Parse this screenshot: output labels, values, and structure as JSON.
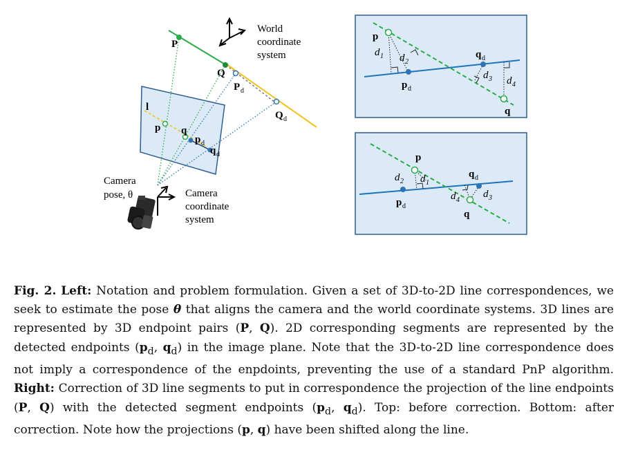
{
  "figure": {
    "left": {
      "world_frame_label": [
        "World",
        "coordinate",
        "system"
      ],
      "camera_frame_label": [
        "Camera",
        "coordinate",
        "system"
      ],
      "camera_pose_label": [
        "Camera",
        "pose, θ"
      ],
      "point_P": "P",
      "point_Q": "Q",
      "point_Pd": "P",
      "point_Pd_sub": "d",
      "point_Qd": "Q",
      "point_Qd_sub": "d",
      "line_l": "l",
      "image_p": "p",
      "image_q": "q",
      "image_pd": "p",
      "image_pd_sub": "d",
      "image_qd": "q",
      "image_qd_sub": "d"
    },
    "top_right": {
      "p": "p",
      "q": "q",
      "pd": "p",
      "pd_sub": "d",
      "qd": "q",
      "qd_sub": "d",
      "d1": "d",
      "d1_sub": "1",
      "d2": "d",
      "d2_sub": "2",
      "d3": "d",
      "d3_sub": "3",
      "d4": "d",
      "d4_sub": "4"
    },
    "bottom_right": {
      "p": "p",
      "q": "q",
      "pd": "p",
      "pd_sub": "d",
      "qd": "q",
      "qd_sub": "d",
      "d1": "d",
      "d1_sub": "1",
      "d2": "d",
      "d2_sub": "2",
      "d3": "d",
      "d3_sub": "3",
      "d4": "d",
      "d4_sub": "4"
    }
  },
  "caption": {
    "fig_label": "Fig. 2.",
    "left_label": "Left:",
    "text_1": " Notation and problem formulation. Given a set of 3D-to-2D line correspondences, we seek to estimate the pose ",
    "theta": "θ",
    "text_2": " that aligns the camera and the world coordinate systems. 3D lines are represented by 3D endpoint pairs (",
    "P": "P",
    "comma1": ", ",
    "Q": "Q",
    "text_3": "). 2D corresponding segments are represented by the detected endpoints (",
    "pd": "p",
    "pd_sub": "d",
    "comma2": ", ",
    "qd": "q",
    "qd_sub": "d",
    "text_4": ") in the image plane. Note that the 3D-to-2D line correspondence does not imply a correspondence of the enpdoints, preventing the use of a standard PnP algorithm. ",
    "right_label": "Right:",
    "text_5": " Correction of 3D line segments to put in correspondence the projection of the line endpoints (",
    "P2": "P",
    "comma3": ", ",
    "Q2": "Q",
    "text_6": ") with the detected segment endpoints (",
    "pd2": "p",
    "pd2_sub": "d",
    "comma4": ", ",
    "qd2": "q",
    "qd2_sub": "d",
    "text_7": "). Top: before correction. Bottom: after correction. Note how the projections (",
    "p": "p",
    "comma5": ", ",
    "q": "q",
    "text_8": ") have been shifted along the line."
  },
  "colors": {
    "plane_fill": "#dce9f7",
    "line_blue": "#1f73b7",
    "line_green": "#2aab4a",
    "line_yellow": "#f2c21e",
    "point_blue": "#2e74b5"
  }
}
